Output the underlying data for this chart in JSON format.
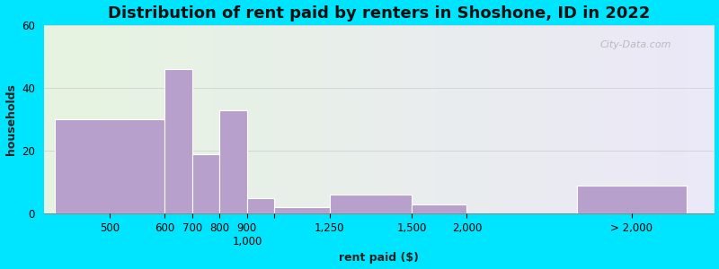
{
  "title": "Distribution of rent paid by renters in Shoshone, ID in 2022",
  "xlabel": "rent paid ($)",
  "ylabel": "households",
  "bar_color": "#b8a0cc",
  "bar_edgecolor": "#ffffff",
  "ylim": [
    0,
    60
  ],
  "yticks": [
    0,
    20,
    40,
    60
  ],
  "background_color": "#00e5ff",
  "plot_bg_left": "#e6f4e0",
  "plot_bg_right": "#ece8f8",
  "title_fontsize": 13,
  "axis_label_fontsize": 9,
  "tick_fontsize": 8.5,
  "watermark_text": "City-Data.com",
  "bar_lefts": [
    0.0,
    2.0,
    2.5,
    3.0,
    3.5,
    4.0,
    5.0,
    6.5,
    7.5,
    9.5
  ],
  "bar_widths": [
    2.0,
    0.5,
    0.5,
    0.5,
    0.5,
    1.0,
    1.5,
    1.0,
    0.5,
    2.0
  ],
  "bar_heights": [
    30,
    46,
    19,
    33,
    5,
    2,
    6,
    3,
    0,
    9
  ],
  "xtick_positions": [
    1.0,
    2.0,
    2.5,
    3.0,
    3.5,
    4.5,
    5.75,
    7.0,
    7.75,
    10.5
  ],
  "xtick_labels": [
    "500",
    "600",
    "700",
    "800",
    "900",
    "1,000",
    "1,250",
    "1,500",
    "2,000",
    "> 2,000"
  ],
  "xlim": [
    -0.2,
    12.0
  ],
  "figsize": [
    8.0,
    3.0
  ],
  "dpi": 100
}
